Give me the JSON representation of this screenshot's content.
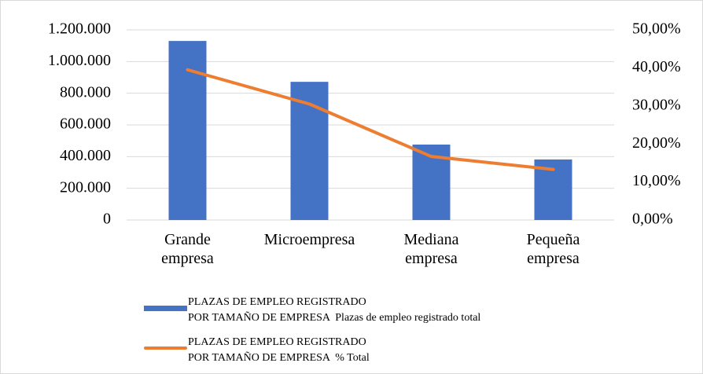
{
  "chart_data": {
    "type": "bar-line",
    "categories": [
      "Grande empresa",
      "Microempresa",
      "Mediana empresa",
      "Pequeña empresa"
    ],
    "series": [
      {
        "name": "PLAZAS DE EMPLEO REGISTRADO\nPOR TAMAÑO DE EMPRESA  Plazas de empleo registrado total",
        "type": "bar",
        "color": "#4472c4",
        "values": [
          1130000,
          872000,
          476000,
          382000
        ]
      },
      {
        "name": "PLAZAS DE EMPLEO REGISTRADO\nPOR TAMAÑO DE EMPRESA  % Total",
        "type": "line",
        "color": "#ed7d31",
        "axis": "y2",
        "values": [
          39.5,
          30.5,
          16.7,
          13.3
        ]
      }
    ],
    "ylim": [
      0,
      1200000
    ],
    "yticks": [
      0,
      {
        "value": 200000,
        "label": "200.000"
      },
      {
        "value": 400000,
        "label": "400.000"
      },
      {
        "value": 600000,
        "label": "600.000"
      },
      {
        "value": 800000,
        "label": "800.000"
      },
      {
        "value": 1000000,
        "label": "1.000.000"
      },
      {
        "value": 1200000,
        "label": "1.200.000"
      }
    ],
    "y2lim": [
      0,
      50
    ],
    "y2ticks": [
      {
        "value": 0,
        "label": "0,00%"
      },
      {
        "value": 10,
        "label": "10,00%"
      },
      {
        "value": 20,
        "label": "20,00%"
      },
      {
        "value": 30,
        "label": "30,00%"
      },
      {
        "value": 40,
        "label": "40,00%"
      },
      {
        "value": 50,
        "label": "50,00%"
      }
    ],
    "grid": true,
    "legend": "bottom"
  }
}
